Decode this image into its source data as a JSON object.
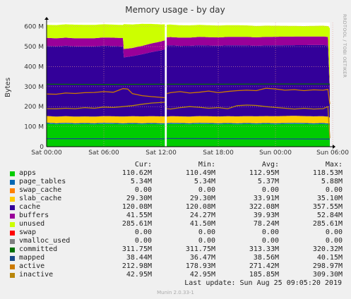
{
  "chart_data": {
    "type": "area",
    "title": "Memory usage - by day",
    "ylabel": "Bytes",
    "side_label": "RRDTOOL / TOBI OETIKER",
    "ylim": [
      0,
      620
    ],
    "yticks": [
      {
        "v": 0,
        "label": "0"
      },
      {
        "v": 100,
        "label": "100 M"
      },
      {
        "v": 200,
        "label": "200 M"
      },
      {
        "v": 300,
        "label": "300 M"
      },
      {
        "v": 400,
        "label": "400 M"
      },
      {
        "v": 500,
        "label": "500 M"
      },
      {
        "v": 600,
        "label": "600 M"
      }
    ],
    "xlim": [
      0,
      29.7
    ],
    "xticks": [
      {
        "v": 0,
        "label": "Sat 00:00"
      },
      {
        "v": 6,
        "label": "Sat 06:00"
      },
      {
        "v": 12,
        "label": "Sat 12:00"
      },
      {
        "v": 18,
        "label": "Sat 18:00"
      },
      {
        "v": 24,
        "label": "Sun 00:00"
      },
      {
        "v": 30,
        "label": "Sun 06:00"
      }
    ],
    "gap": [
      12.4,
      12.6
    ],
    "stack": [
      {
        "name": "apps",
        "color": "#00cc00",
        "values": [
          [
            0,
            115
          ],
          [
            1,
            112
          ],
          [
            2,
            114
          ],
          [
            3,
            112
          ],
          [
            4,
            113
          ],
          [
            5,
            112
          ],
          [
            6,
            114
          ],
          [
            7,
            113
          ],
          [
            8,
            112
          ],
          [
            9,
            113
          ],
          [
            10,
            112
          ],
          [
            11,
            113
          ],
          [
            12,
            112
          ],
          [
            12.4,
            112
          ],
          [
            12.6,
            112
          ],
          [
            13,
            114
          ],
          [
            14,
            113
          ],
          [
            15,
            112
          ],
          [
            16,
            114
          ],
          [
            17,
            113
          ],
          [
            18,
            112
          ],
          [
            19,
            113
          ],
          [
            20,
            112
          ],
          [
            21,
            113
          ],
          [
            22,
            112
          ],
          [
            23,
            113
          ],
          [
            24,
            112
          ],
          [
            25,
            113
          ],
          [
            26,
            114
          ],
          [
            27,
            113
          ],
          [
            28,
            112
          ],
          [
            29,
            113
          ],
          [
            29.5,
            111
          ],
          [
            29.7,
            111
          ]
        ]
      },
      {
        "name": "page_tables",
        "color": "#0066b3",
        "values": [
          [
            0,
            5.4
          ],
          [
            29.7,
            5.3
          ]
        ]
      },
      {
        "name": "swap_cache",
        "color": "#ff8000",
        "values": [
          [
            0,
            0
          ],
          [
            29.7,
            0
          ]
        ]
      },
      {
        "name": "slab_cache",
        "color": "#ffcc00",
        "values": [
          [
            0,
            33
          ],
          [
            5,
            33
          ],
          [
            10,
            34
          ],
          [
            12.4,
            34
          ],
          [
            12.6,
            33
          ],
          [
            20,
            34
          ],
          [
            25,
            35
          ],
          [
            29.5,
            34
          ],
          [
            29.7,
            29
          ]
        ]
      },
      {
        "name": "cache",
        "color": "#330099",
        "values": [
          [
            0,
            350
          ],
          [
            2,
            352
          ],
          [
            4,
            350
          ],
          [
            6,
            352
          ],
          [
            8,
            350
          ],
          [
            8.1,
            295
          ],
          [
            9,
            300
          ],
          [
            10,
            310
          ],
          [
            12,
            330
          ],
          [
            12.4,
            335
          ],
          [
            12.6,
            355
          ],
          [
            14,
            352
          ],
          [
            16,
            354
          ],
          [
            18,
            353
          ],
          [
            20,
            355
          ],
          [
            22,
            352
          ],
          [
            24,
            354
          ],
          [
            26,
            353
          ],
          [
            28,
            356
          ],
          [
            29.5,
            355
          ],
          [
            29.7,
            120
          ]
        ]
      },
      {
        "name": "buffers",
        "color": "#990099",
        "values": [
          [
            0,
            40
          ],
          [
            4,
            40
          ],
          [
            8,
            42
          ],
          [
            9,
            41
          ],
          [
            12.4,
            45
          ],
          [
            12.6,
            41
          ],
          [
            18,
            42
          ],
          [
            24,
            43
          ],
          [
            29.5,
            43
          ],
          [
            29.7,
            41
          ]
        ]
      },
      {
        "name": "unused",
        "color": "#ccff00",
        "values": [
          [
            0,
            65
          ],
          [
            3,
            68
          ],
          [
            6,
            66
          ],
          [
            8,
            65
          ],
          [
            8.1,
            124
          ],
          [
            10,
            110
          ],
          [
            12.4,
            80
          ],
          [
            12.6,
            63
          ],
          [
            16,
            60
          ],
          [
            20,
            58
          ],
          [
            24,
            55
          ],
          [
            27,
            52
          ],
          [
            29.5,
            54
          ],
          [
            29.7,
            286
          ]
        ]
      }
    ],
    "lines": [
      {
        "name": "committed",
        "color": "#007000",
        "values": [
          [
            0,
            312
          ],
          [
            6,
            311
          ],
          [
            12.4,
            312
          ],
          [
            12.6,
            312
          ],
          [
            18,
            312
          ],
          [
            24,
            313
          ],
          [
            29.5,
            313
          ],
          [
            29.7,
            312
          ]
        ]
      },
      {
        "name": "active",
        "color": "#cc7a00",
        "values": [
          [
            0,
            263
          ],
          [
            1,
            262
          ],
          [
            2,
            268
          ],
          [
            3,
            266
          ],
          [
            4,
            270
          ],
          [
            5,
            271
          ],
          [
            6,
            275
          ],
          [
            7,
            272
          ],
          [
            8,
            290
          ],
          [
            8.5,
            288
          ],
          [
            9,
            265
          ],
          [
            10,
            255
          ],
          [
            11,
            250
          ],
          [
            12.4,
            245
          ],
          [
            12.6,
            265
          ],
          [
            13,
            270
          ],
          [
            14,
            275
          ],
          [
            15,
            268
          ],
          [
            16,
            272
          ],
          [
            17,
            278
          ],
          [
            18,
            270
          ],
          [
            19,
            276
          ],
          [
            20,
            280
          ],
          [
            21,
            282
          ],
          [
            22,
            280
          ],
          [
            23,
            292
          ],
          [
            24,
            288
          ],
          [
            25,
            282
          ],
          [
            26,
            285
          ],
          [
            27,
            280
          ],
          [
            28,
            284
          ],
          [
            29,
            282
          ],
          [
            29.5,
            286
          ],
          [
            29.7,
            213
          ]
        ]
      },
      {
        "name": "inactive",
        "color": "#b8860b",
        "values": [
          [
            0,
            190
          ],
          [
            1,
            189
          ],
          [
            2,
            192
          ],
          [
            3,
            190
          ],
          [
            4,
            195
          ],
          [
            5,
            192
          ],
          [
            6,
            198
          ],
          [
            7,
            196
          ],
          [
            8,
            200
          ],
          [
            9,
            205
          ],
          [
            10,
            212
          ],
          [
            11,
            218
          ],
          [
            12.4,
            222
          ],
          [
            12.6,
            190
          ],
          [
            13,
            188
          ],
          [
            14,
            195
          ],
          [
            15,
            200
          ],
          [
            16,
            197
          ],
          [
            17,
            192
          ],
          [
            18,
            195
          ],
          [
            19,
            190
          ],
          [
            20,
            205
          ],
          [
            21,
            208
          ],
          [
            22,
            206
          ],
          [
            23,
            200
          ],
          [
            24,
            196
          ],
          [
            25,
            192
          ],
          [
            26,
            188
          ],
          [
            27,
            192
          ],
          [
            28,
            188
          ],
          [
            29,
            190
          ],
          [
            29.5,
            200
          ],
          [
            29.7,
            43
          ]
        ]
      },
      {
        "name": "mapped",
        "color": "#1a4a8a",
        "values": [
          [
            0,
            40
          ],
          [
            12.4,
            39
          ],
          [
            12.6,
            41
          ],
          [
            29.7,
            38
          ]
        ]
      }
    ],
    "legend_headers": [
      "Cur:",
      "Min:",
      "Avg:",
      "Max:"
    ],
    "legend": [
      {
        "name": "apps",
        "color": "#00cc00",
        "cur": "110.62M",
        "min": "110.49M",
        "avg": "112.95M",
        "max": "118.53M"
      },
      {
        "name": "page_tables",
        "color": "#0066b3",
        "cur": "5.34M",
        "min": "5.34M",
        "avg": "5.37M",
        "max": "5.88M"
      },
      {
        "name": "swap_cache",
        "color": "#ff8000",
        "cur": "0.00",
        "min": "0.00",
        "avg": "0.00",
        "max": "0.00"
      },
      {
        "name": "slab_cache",
        "color": "#ffcc00",
        "cur": "29.30M",
        "min": "29.30M",
        "avg": "33.91M",
        "max": "35.10M"
      },
      {
        "name": "cache",
        "color": "#330099",
        "cur": "120.08M",
        "min": "120.08M",
        "avg": "322.08M",
        "max": "357.55M"
      },
      {
        "name": "buffers",
        "color": "#990099",
        "cur": "41.55M",
        "min": "24.27M",
        "avg": "39.93M",
        "max": "52.84M"
      },
      {
        "name": "unused",
        "color": "#ccff00",
        "cur": "285.61M",
        "min": "41.50M",
        "avg": "78.24M",
        "max": "285.61M"
      },
      {
        "name": "swap",
        "color": "#ff0000",
        "cur": "0.00",
        "min": "0.00",
        "avg": "0.00",
        "max": "0.00"
      },
      {
        "name": "vmalloc_used",
        "color": "#808080",
        "cur": "0.00",
        "min": "0.00",
        "avg": "0.00",
        "max": "0.00"
      },
      {
        "name": "committed",
        "color": "#007000",
        "cur": "311.75M",
        "min": "311.75M",
        "avg": "313.33M",
        "max": "320.32M"
      },
      {
        "name": "mapped",
        "color": "#1a4a8a",
        "cur": "38.44M",
        "min": "36.47M",
        "avg": "38.56M",
        "max": "40.15M"
      },
      {
        "name": "active",
        "color": "#cc7a00",
        "cur": "212.98M",
        "min": "178.93M",
        "avg": "271.42M",
        "max": "298.97M"
      },
      {
        "name": "inactive",
        "color": "#b8860b",
        "cur": "42.95M",
        "min": "42.95M",
        "avg": "185.85M",
        "max": "309.30M"
      }
    ],
    "last_update": "Last update:  Sun Aug 25 09:05:20 2019",
    "footer": "Munin 2.0.33-1"
  }
}
